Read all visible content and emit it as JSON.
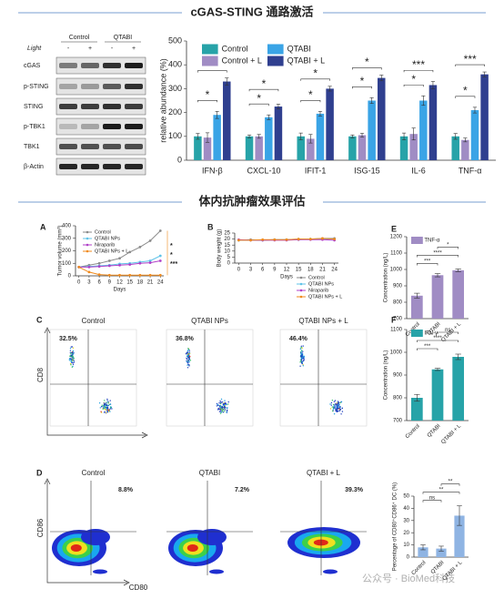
{
  "title": "cGAS-STING 通路激活",
  "subtitle": "体内抗肿瘤效果评估",
  "watermark": "公众号 · BioMed科技",
  "blot": {
    "groups": [
      "Control",
      "QTABI"
    ],
    "light_label": "Light",
    "light": [
      "-",
      "+",
      "-",
      "+"
    ],
    "rows": [
      "cGAS",
      "p-STING",
      "STING",
      "p-TBK1",
      "TBK1",
      "β-Actin"
    ]
  },
  "flow_c": {
    "panel": "C",
    "titles": [
      "Control",
      "QTABI NPs",
      "QTABI NPs + L"
    ],
    "percentages": [
      "32.5%",
      "36.8%",
      "46.4%"
    ],
    "y_label": "CD8"
  },
  "flow_d": {
    "panel": "D",
    "titles": [
      "Control",
      "QTABI",
      "QTABI + L"
    ],
    "percentages": [
      "8.8%",
      "7.2%",
      "39.3%"
    ],
    "x_label": "CD80",
    "y_label": "CD86"
  },
  "chart_data": [
    {
      "type": "bar",
      "y_label": "relative abundance (%)",
      "categories": [
        "IFN-β",
        "CXCL-10",
        "IFIT-1",
        "ISG-15",
        "IL-6",
        "TNF-α"
      ],
      "series": [
        {
          "name": "Control",
          "color": "#27a3a8",
          "values": [
            100,
            100,
            100,
            100,
            100,
            100
          ],
          "errors": [
            12,
            6,
            14,
            6,
            14,
            12
          ]
        },
        {
          "name": "Control + L",
          "color": "#a08cc4",
          "values": [
            95,
            100,
            90,
            105,
            110,
            85
          ],
          "errors": [
            20,
            8,
            18,
            8,
            25,
            8
          ]
        },
        {
          "name": "QTABI",
          "color": "#3aa4e6",
          "values": [
            190,
            180,
            195,
            250,
            250,
            210
          ],
          "errors": [
            15,
            10,
            10,
            12,
            20,
            12
          ]
        },
        {
          "name": "QTABI + L",
          "color": "#2f3f8f",
          "values": [
            330,
            225,
            300,
            345,
            315,
            360
          ],
          "errors": [
            15,
            10,
            10,
            12,
            15,
            10
          ]
        }
      ],
      "ylim": [
        0,
        500
      ],
      "yticks": [
        0,
        100,
        200,
        300,
        400,
        500
      ],
      "legend": "top-left",
      "significance": [
        [
          "*",
          "*"
        ],
        [
          "*",
          "*"
        ],
        [
          "*",
          "*"
        ],
        [
          "*",
          "*"
        ],
        [
          "*",
          "***"
        ],
        [
          "*",
          "***"
        ]
      ]
    },
    {
      "type": "line",
      "panel": "A",
      "x_label": "Days",
      "y_label": "Tumor volume (mm³)",
      "x": [
        0,
        3,
        6,
        9,
        12,
        15,
        18,
        21,
        24
      ],
      "xlim": [
        -1,
        25
      ],
      "xticks": [
        0,
        3,
        6,
        9,
        12,
        15,
        18,
        21,
        24
      ],
      "ylim": [
        0,
        400
      ],
      "yticks": [
        0,
        100,
        200,
        300,
        400
      ],
      "legend": "top-left",
      "series": [
        {
          "name": "Control",
          "color": "#8a8a8a",
          "values": [
            70,
            85,
            100,
            120,
            140,
            190,
            230,
            280,
            360
          ]
        },
        {
          "name": "QTABI NPs",
          "color": "#5fc3e8",
          "values": [
            70,
            75,
            80,
            85,
            95,
            100,
            110,
            120,
            160
          ]
        },
        {
          "name": "Niraparib",
          "color": "#b040c8",
          "values": [
            70,
            70,
            75,
            80,
            85,
            90,
            100,
            105,
            120
          ]
        },
        {
          "name": "QTABI NPs + L",
          "color": "#f08a1c",
          "values": [
            70,
            30,
            10,
            5,
            5,
            5,
            5,
            5,
            5
          ]
        }
      ],
      "significance": [
        "*",
        "*",
        "***"
      ]
    },
    {
      "type": "line",
      "panel": "B",
      "x_label": "Days",
      "y_label": "Body weight (g)",
      "x": [
        0,
        3,
        6,
        9,
        12,
        15,
        18,
        21,
        24
      ],
      "xlim": [
        -1,
        25
      ],
      "xticks": [
        0,
        3,
        6,
        9,
        12,
        15,
        18,
        21,
        24
      ],
      "ylim": [
        0,
        25
      ],
      "yticks": [
        0,
        5,
        10,
        15,
        20,
        25
      ],
      "legend": "bottom-right",
      "series": [
        {
          "name": "Control",
          "color": "#8a8a8a",
          "values": [
            19,
            19.5,
            19,
            19.5,
            19.5,
            20,
            20,
            20.5,
            20.5
          ]
        },
        {
          "name": "QTABI NPs",
          "color": "#5fc3e8",
          "values": [
            19,
            19,
            19,
            19.5,
            19.5,
            19.5,
            20,
            20,
            20
          ]
        },
        {
          "name": "Niraparib",
          "color": "#b040c8",
          "values": [
            19.5,
            19,
            19,
            19,
            19,
            19.5,
            19.5,
            19.5,
            19
          ]
        },
        {
          "name": "QTABI NPs + L",
          "color": "#f08a1c",
          "values": [
            19,
            19,
            19.5,
            19.5,
            19.5,
            20,
            20,
            20.5,
            20
          ]
        }
      ]
    },
    {
      "type": "bar",
      "panel": "E",
      "y_label": "Concentration (ng/L)",
      "categories": [
        "Control",
        "QTABI",
        "QTABI + L"
      ],
      "series": [
        {
          "name": "TNF-α",
          "color": "#a08cc4",
          "values": [
            840,
            965,
            995
          ],
          "errors": [
            15,
            10,
            8
          ]
        }
      ],
      "ylim": [
        700,
        1200
      ],
      "yticks": [
        700,
        800,
        900,
        1000,
        1100,
        1200
      ],
      "legend": "top-left",
      "significance": [
        "***",
        "****",
        "*"
      ]
    },
    {
      "type": "bar",
      "panel": "F",
      "y_label": "Concentration (ng/L)",
      "categories": [
        "Control",
        "QTABI",
        "QTABI + L"
      ],
      "series": [
        {
          "name": "IFN-γ",
          "color": "#27a3a8",
          "values": [
            800,
            925,
            980
          ],
          "errors": [
            15,
            5,
            12
          ]
        }
      ],
      "ylim": [
        700,
        1100
      ],
      "yticks": [
        700,
        800,
        900,
        1000,
        1100
      ],
      "legend": "top-left",
      "significance": [
        "***",
        "****",
        "ns"
      ]
    },
    {
      "type": "bar",
      "y_label": "Percentage of CD80⁺CD86⁺ DC (%)",
      "categories": [
        "Control",
        "QTABI",
        "QTABI + L"
      ],
      "series": [
        {
          "color": "#8fb4e3",
          "values": [
            8,
            7,
            34
          ],
          "errors": [
            2,
            2,
            8
          ]
        }
      ],
      "ylim": [
        0,
        50
      ],
      "yticks": [
        0,
        10,
        20,
        30,
        40,
        50
      ],
      "significance": [
        "ns",
        "**",
        "**"
      ]
    }
  ]
}
